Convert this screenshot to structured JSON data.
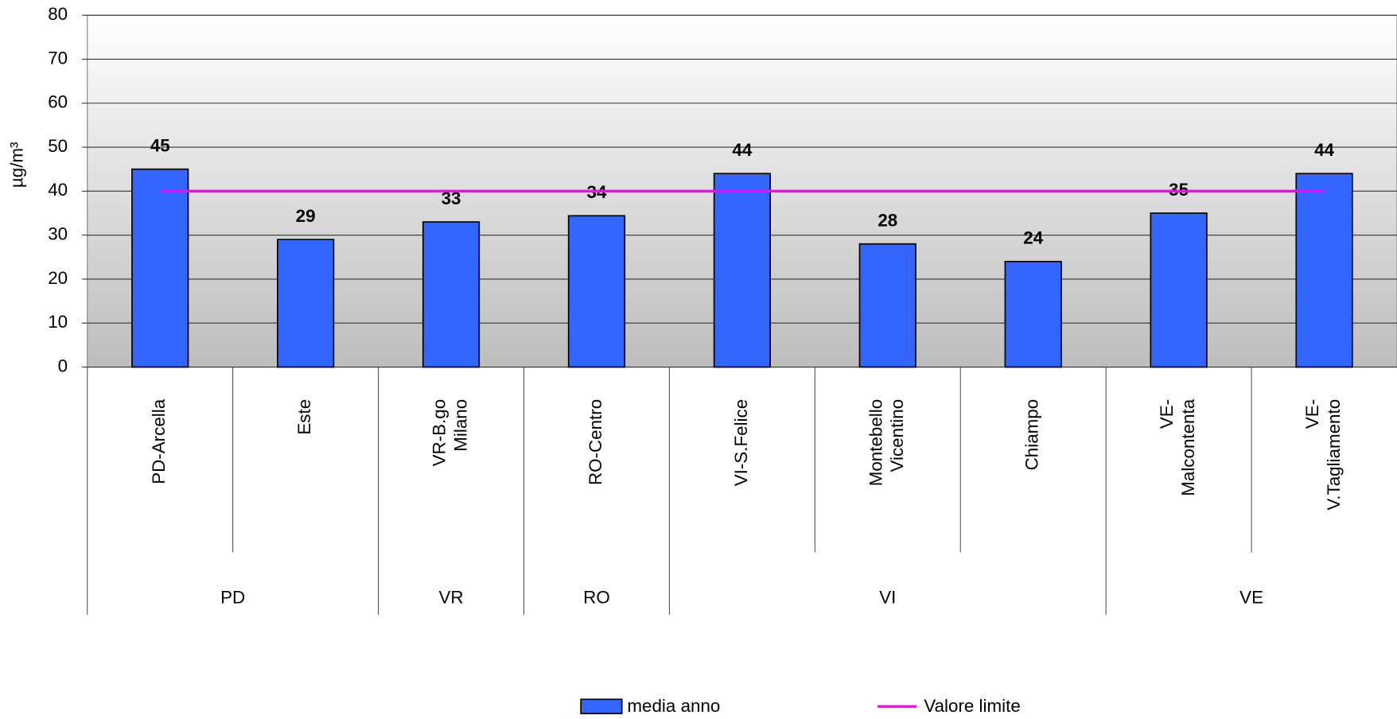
{
  "chart_data": {
    "type": "bar",
    "y_label": "µg/m³",
    "categories": [
      "PD-Arcella",
      "Este",
      "VR-B.go\nMilano",
      "RO-Centro",
      "VI-S.Felice",
      "Montebello\nVicentino",
      "Chiampo",
      "VE-\nMalcontenta",
      "VE-\nV.Tagliamento"
    ],
    "groups": [
      "PD",
      "PD",
      "VR",
      "RO",
      "VI",
      "VI",
      "VI",
      "VE",
      "VE"
    ],
    "series": [
      {
        "name": "media anno",
        "type": "bar",
        "color": "#3366ff",
        "values": [
          45,
          29,
          33,
          34.4,
          44,
          28,
          24,
          35,
          44
        ],
        "value_labels": [
          "45",
          "29",
          "33",
          "34",
          "44",
          "28",
          "24",
          "35",
          "44"
        ]
      },
      {
        "name": "Valore limite",
        "type": "line",
        "color": "#ff00ff",
        "values": [
          40,
          40,
          40,
          40,
          40,
          40,
          40,
          40,
          40
        ]
      }
    ],
    "ylim": [
      0,
      80
    ],
    "yticks": [
      0,
      10,
      20,
      30,
      40,
      50,
      60,
      70,
      80
    ],
    "grid": true,
    "legend": "bottom"
  }
}
